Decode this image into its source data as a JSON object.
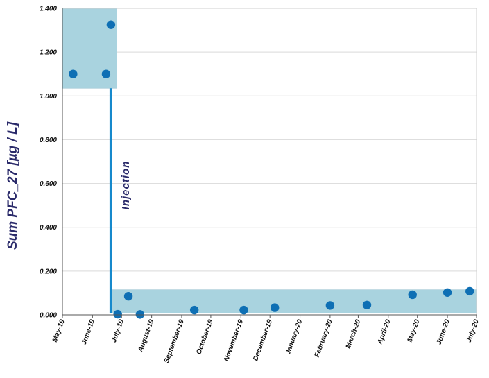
{
  "chart_data": {
    "type": "scatter",
    "ylabel": "Sum PFC_27 [µg / L]",
    "xlabel": "",
    "ylim": [
      0,
      1.4
    ],
    "yticks": [
      0,
      0.2,
      0.4,
      0.6,
      0.8,
      1.0,
      1.2,
      1.4
    ],
    "ytick_labels": [
      "0.000",
      "0.200",
      "0.400",
      "0.600",
      "0.800",
      "1.000",
      "1.200",
      "1.400"
    ],
    "xlim": [
      "2019-05-01",
      "2020-07-01"
    ],
    "xtick_labels": [
      "May-19",
      "June-19",
      "July-19",
      "August-19",
      "September-19",
      "October-19",
      "November-19",
      "December-19",
      "January-20",
      "February-20",
      "March-20",
      "April-20",
      "May-20",
      "June-20",
      "July-20"
    ],
    "xtick_dates": [
      "2019-05-01",
      "2019-06-01",
      "2019-07-01",
      "2019-08-01",
      "2019-09-01",
      "2019-10-01",
      "2019-11-01",
      "2019-12-01",
      "2020-01-01",
      "2020-02-01",
      "2020-03-01",
      "2020-04-01",
      "2020-05-01",
      "2020-06-01",
      "2020-07-01"
    ],
    "grid": true,
    "points": [
      {
        "x": "2019-05-12",
        "y": 1.1
      },
      {
        "x": "2019-06-15",
        "y": 1.1
      },
      {
        "x": "2019-06-20",
        "y": 1.325
      },
      {
        "x": "2019-06-27",
        "y": 0.003
      },
      {
        "x": "2019-07-08",
        "y": 0.085
      },
      {
        "x": "2019-07-20",
        "y": 0.002
      },
      {
        "x": "2019-09-14",
        "y": 0.022
      },
      {
        "x": "2019-11-04",
        "y": 0.022
      },
      {
        "x": "2019-12-06",
        "y": 0.033
      },
      {
        "x": "2020-02-01",
        "y": 0.043
      },
      {
        "x": "2020-03-10",
        "y": 0.045
      },
      {
        "x": "2020-04-26",
        "y": 0.092
      },
      {
        "x": "2020-06-01",
        "y": 0.102
      },
      {
        "x": "2020-06-24",
        "y": 0.108
      }
    ],
    "bands": [
      {
        "x0": "2019-05-01",
        "x1": "2019-06-26",
        "y0": 1.035,
        "y1": 1.4
      },
      {
        "x0": "2019-06-20",
        "x1": "2020-07-01",
        "y0": 0.008,
        "y1": 0.115
      }
    ],
    "annotation": {
      "text": "Injection",
      "x": "2019-06-20",
      "y0": 0.008,
      "y1": 1.035
    },
    "colors": {
      "point": "#0e6fb4",
      "band": "#a9d3df",
      "line": "#1689cc",
      "ylabel": "#2a2a6a",
      "annotation": "#2a2a6a",
      "grid": "#d9d9d9"
    }
  }
}
